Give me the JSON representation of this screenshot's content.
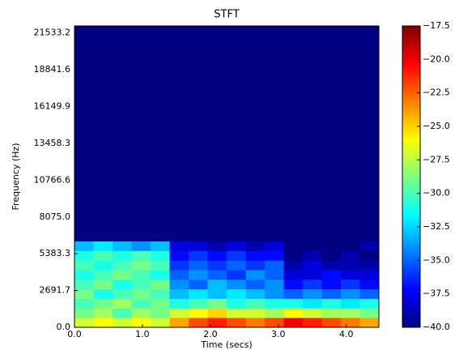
{
  "chart_data": {
    "type": "heatmap",
    "title": "STFT",
    "xlabel": "Time (secs)",
    "ylabel": "Frequency (Hz)",
    "xbins": [
      0,
      0.28,
      0.56,
      0.84,
      1.12,
      1.4,
      1.68,
      1.96,
      2.24,
      2.52,
      2.8,
      3.08,
      3.36,
      3.64,
      3.92,
      4.2,
      4.48
    ],
    "ybins": [
      0,
      700,
      1400,
      2100,
      2800,
      3500,
      4200,
      4900,
      5600,
      6300,
      22050
    ],
    "z": [
      [
        -27,
        -26,
        -27,
        -26,
        -27,
        -24,
        -22,
        -21,
        -22,
        -23,
        -22,
        -20,
        -21,
        -22,
        -23,
        -24
      ],
      [
        -29,
        -28,
        -30,
        -28,
        -29,
        -27,
        -26,
        -25,
        -27,
        -27,
        -28,
        -26,
        -27,
        -28,
        -28,
        -29
      ],
      [
        -30,
        -29,
        -28,
        -30,
        -29,
        -31,
        -30,
        -29,
        -31,
        -30,
        -31,
        -31,
        -32,
        -31,
        -32,
        -31
      ],
      [
        -29,
        -31,
        -30,
        -29,
        -30,
        -33,
        -32,
        -33,
        -32,
        -33,
        -34,
        -35,
        -34,
        -35,
        -34,
        -35
      ],
      [
        -30,
        -29,
        -31,
        -30,
        -29,
        -34,
        -35,
        -33,
        -34,
        -35,
        -34,
        -37,
        -36,
        -37,
        -36,
        -37
      ],
      [
        -31,
        -30,
        -29,
        -30,
        -31,
        -35,
        -34,
        -35,
        -36,
        -34,
        -35,
        -38,
        -38,
        -37,
        -38,
        -38
      ],
      [
        -30,
        -31,
        -30,
        -29,
        -30,
        -36,
        -35,
        -36,
        -35,
        -36,
        -35,
        -39,
        -38,
        -39,
        -39,
        -39
      ],
      [
        -31,
        -30,
        -31,
        -30,
        -31,
        -37,
        -36,
        -37,
        -36,
        -37,
        -37,
        -40,
        -39,
        -40,
        -39,
        -40
      ],
      [
        -33,
        -32,
        -33,
        -34,
        -33,
        -38,
        -38,
        -39,
        -38,
        -39,
        -38,
        -40,
        -40,
        -40,
        -40,
        -39
      ],
      [
        -40,
        -40,
        -40,
        -40,
        -40,
        -40,
        -40,
        -40,
        -40,
        -40,
        -40,
        -40,
        -40,
        -40,
        -40,
        -40
      ]
    ],
    "colormap": "jet",
    "xlim": [
      0,
      4.48
    ],
    "xticks": [
      {
        "value": 0,
        "label": "0.0"
      },
      {
        "value": 1,
        "label": "1.0"
      },
      {
        "value": 2,
        "label": "2.0"
      },
      {
        "value": 3,
        "label": "3.0"
      },
      {
        "value": 4,
        "label": "4.0"
      }
    ],
    "ylim": [
      0,
      22050
    ],
    "yticks": [
      {
        "value": 0,
        "label": "0.0"
      },
      2691.7,
      5383.3,
      {
        "value": 8075,
        "label": "8075.0"
      },
      10766.6,
      13458.3,
      16149.9,
      18841.6,
      21533.2
    ],
    "clim": [
      -40,
      -17.5
    ],
    "cticks": [
      {
        "value": -40,
        "label": "−40.0"
      },
      {
        "value": -37.5,
        "label": "−37.5"
      },
      {
        "value": -35,
        "label": "−35.0"
      },
      {
        "value": -32.5,
        "label": "−32.5"
      },
      {
        "value": -30,
        "label": "−30.0"
      },
      {
        "value": -27.5,
        "label": "−27.5"
      },
      {
        "value": -25,
        "label": "−25.0"
      },
      {
        "value": -22.5,
        "label": "−22.5"
      },
      {
        "value": -20,
        "label": "−20.0"
      },
      {
        "value": -17.5,
        "label": "−17.5"
      }
    ]
  }
}
